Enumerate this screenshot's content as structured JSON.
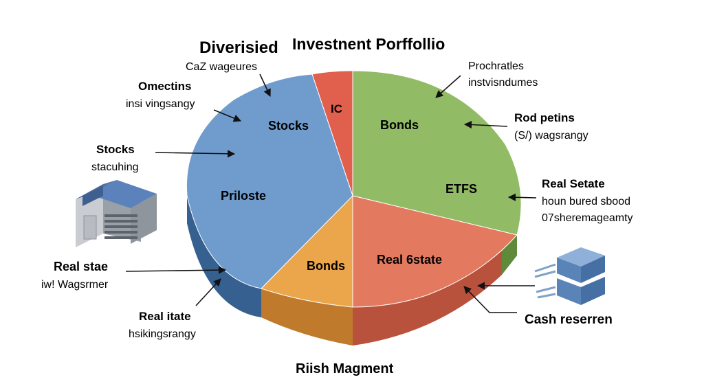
{
  "title": {
    "part1": "Diverisied",
    "part2": "Investnent Porffollio"
  },
  "footer": "Riish Magment",
  "colors": {
    "stocks_blue": "#6f9ccd",
    "ic_red": "#e15f4d",
    "bonds_green": "#92bb66",
    "realestate_salmon": "#e37a5f",
    "bonds_orange": "#eba54a"
  },
  "slices": {
    "ic": "IC",
    "stocks": "Stocks",
    "priloste": "Priloste",
    "bonds_green": "Bonds",
    "etfs": "ETFS",
    "real_estate": "Real 6state",
    "bonds_orange": "Bonds"
  },
  "callouts": {
    "caz": {
      "line1": "CaZ wageures"
    },
    "omectins": {
      "line1": "Omectins",
      "line2": "insi vingsangy"
    },
    "stocks": {
      "line1": "Stocks",
      "line2": "stacuhing"
    },
    "real_stae": {
      "line1": "Real stae",
      "line2": "iw! Wagsrmer"
    },
    "real_itate": {
      "line1": "Real itate",
      "line2": "hsikingsrangy"
    },
    "prochratis": {
      "line1": "Prochratles",
      "line2": "instvisndumes"
    },
    "rod_petins": {
      "line1": "Rod petins",
      "line2": "(S/) wagsrangy"
    },
    "real_setate": {
      "line1": "Real Setate",
      "line2": "houn bured sbood",
      "line3": "07sheremageamty"
    },
    "cash": {
      "line1": "Cash reserren"
    }
  },
  "icons": [
    "building-icon",
    "server-stack-icon"
  ]
}
